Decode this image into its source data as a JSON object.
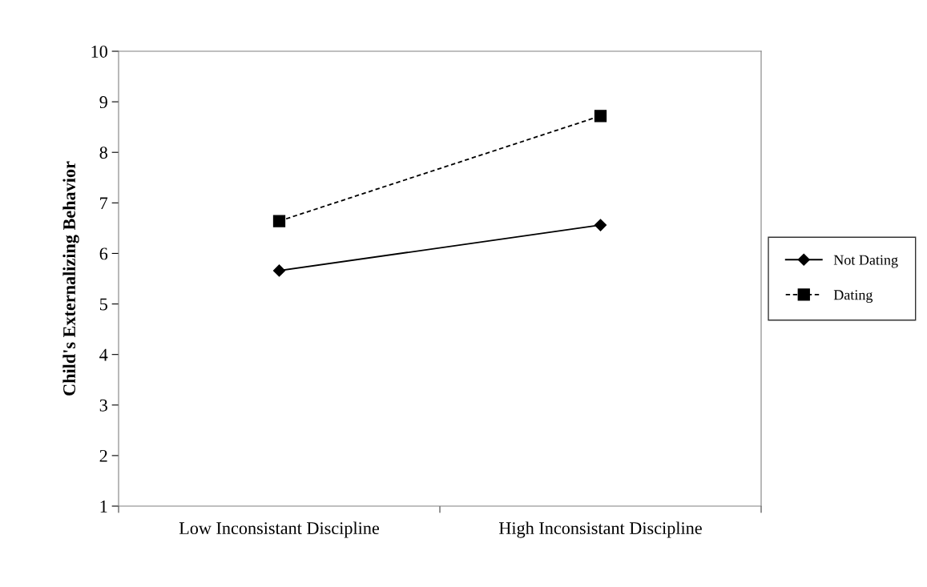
{
  "chart_data": {
    "type": "line",
    "ylabel": "Child's Externalizing Behavior",
    "categories": [
      "Low Inconsistant Discipline",
      "High Inconsistant Discipline"
    ],
    "series": [
      {
        "name": "Not Dating",
        "color": "#000000",
        "values": [
          5.66,
          6.56
        ],
        "marker": "diamond",
        "line_style": "solid"
      },
      {
        "name": "Dating",
        "color": "#000000",
        "values": [
          6.64,
          8.72
        ],
        "marker": "square",
        "line_style": "dashed"
      }
    ],
    "ylim": [
      1,
      10
    ],
    "yticks": [
      1,
      2,
      3,
      4,
      5,
      6,
      7,
      8,
      9,
      10
    ],
    "grid": false,
    "legend": "right"
  }
}
